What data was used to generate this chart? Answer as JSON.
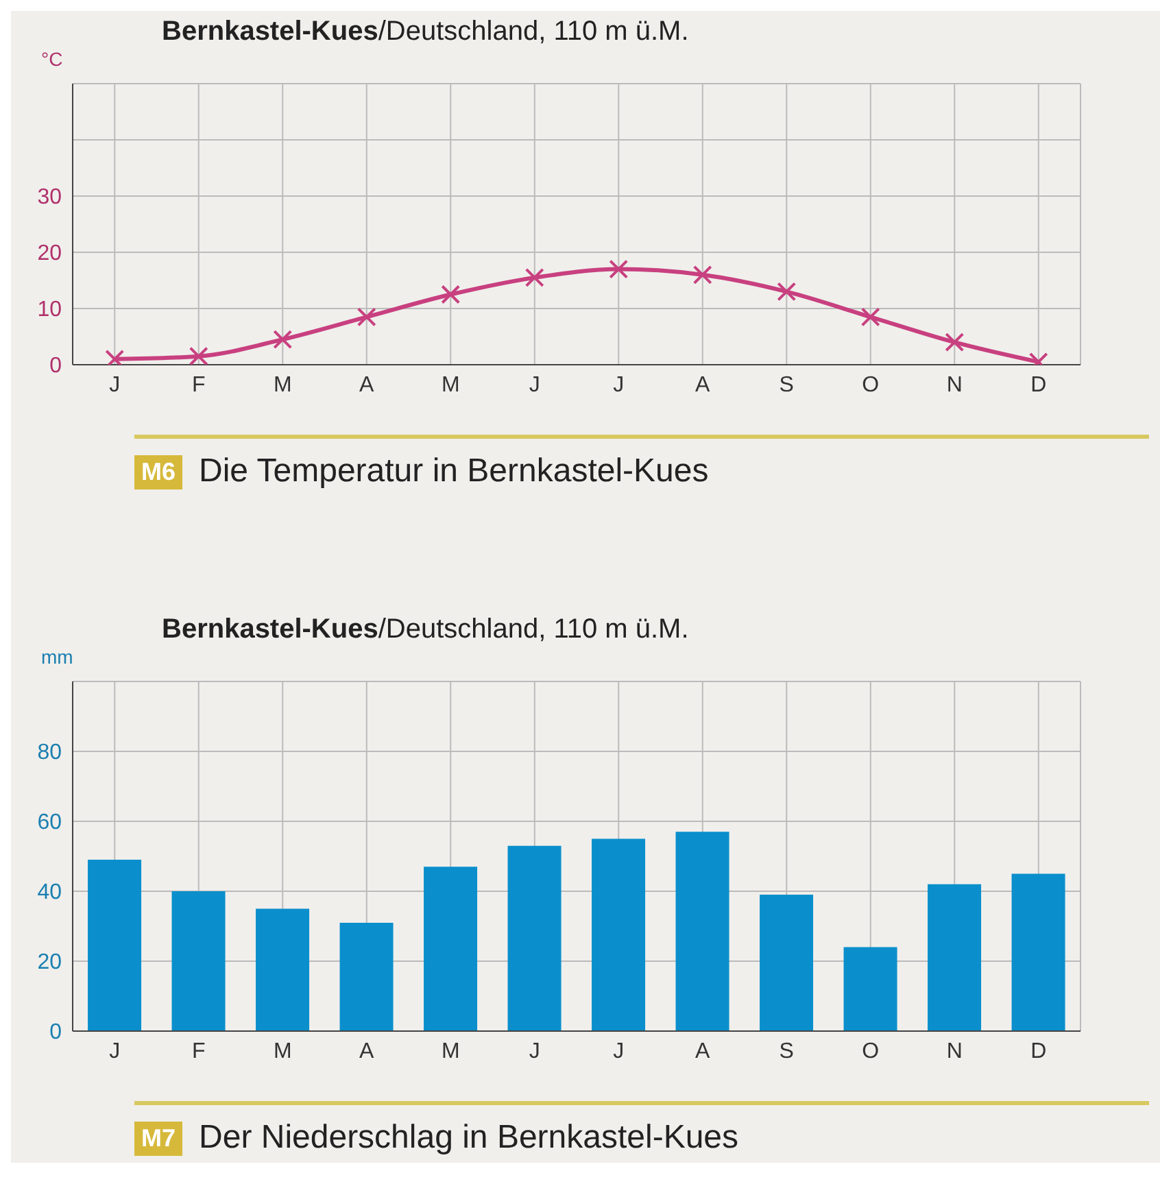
{
  "chart_data": [
    {
      "type": "line",
      "title": "Bernkastel-Kues",
      "subtitle": "/Deutschland, 110 m ü.M.",
      "ylabel": "°C",
      "annotations": [
        "M6",
        "Die Temperatur in Bernkastel-Kues"
      ],
      "categories": [
        "J",
        "F",
        "M",
        "A",
        "M",
        "J",
        "J",
        "A",
        "S",
        "O",
        "N",
        "D"
      ],
      "series": [
        {
          "color": "#c8407f",
          "values": [
            1,
            1.5,
            4.5,
            8.5,
            12.5,
            15.5,
            17,
            16,
            13,
            8.5,
            4,
            0.5
          ]
        }
      ],
      "ylim": [
        0,
        50
      ],
      "yticks": [
        0,
        10,
        20,
        30,
        {
          "value": 40,
          "label": null
        }
      ],
      "grid": true,
      "marker": "cross",
      "line_style": "solid"
    },
    {
      "type": "bar",
      "title": "Bernkastel-Kues",
      "subtitle": "/Deutschland, 110 m ü.M.",
      "ylabel": "mm",
      "annotations": [
        "M7",
        "Der Niederschlag in Bernkastel-Kues"
      ],
      "categories": [
        "J",
        "F",
        "M",
        "A",
        "M",
        "J",
        "J",
        "A",
        "S",
        "O",
        "N",
        "D"
      ],
      "series": [
        {
          "color": "#0a8fcc",
          "values": [
            49,
            40,
            35,
            31,
            47,
            53,
            55,
            57,
            39,
            24,
            42,
            45
          ]
        }
      ],
      "ylim": [
        0,
        100
      ],
      "yticks": [
        0,
        20,
        40,
        60,
        80
      ],
      "grid": true
    }
  ]
}
